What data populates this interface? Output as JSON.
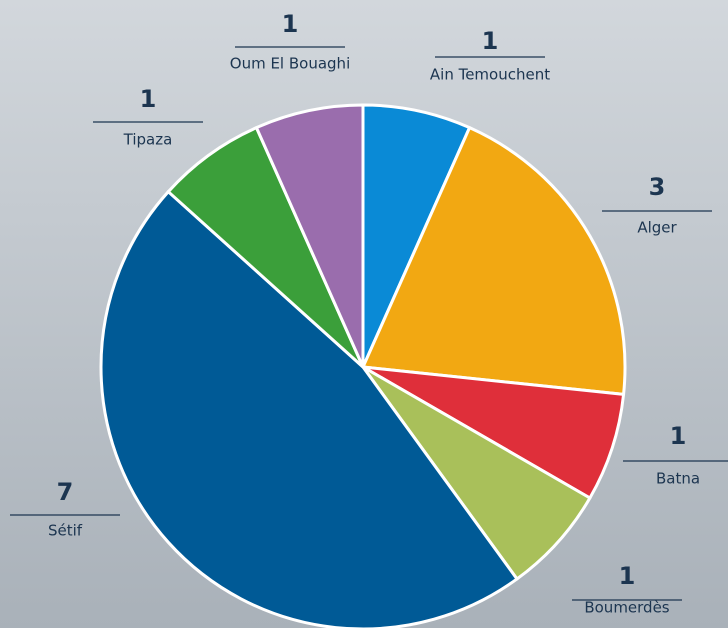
{
  "chart_data": {
    "type": "pie",
    "categories": [
      "Ain Temouchent",
      "Alger",
      "Batna",
      "Boumerdès",
      "Sétif",
      "Tipaza",
      "Oum El Bouaghi"
    ],
    "values": [
      1,
      3,
      1,
      1,
      7,
      1,
      1
    ],
    "colors": [
      "#0a8ad6",
      "#f2a812",
      "#df2f3a",
      "#a9c05a",
      "#005a96",
      "#3b9f3a",
      "#9a6dad"
    ]
  }
}
